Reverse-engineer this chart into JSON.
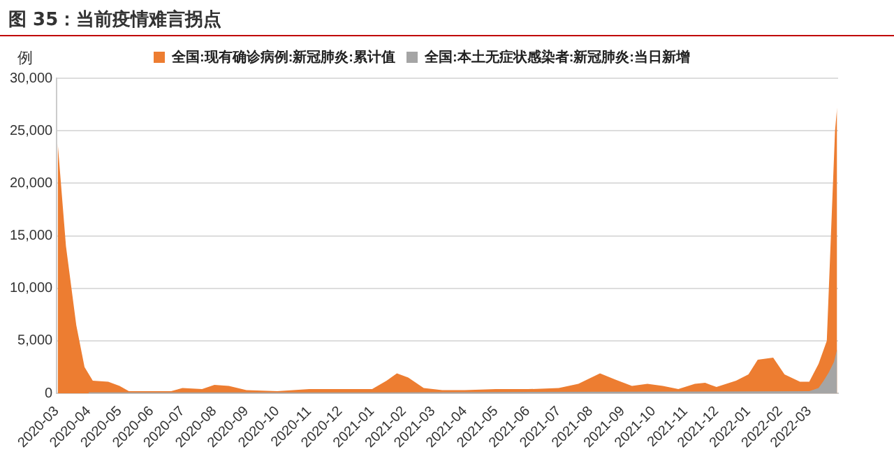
{
  "chart_data": {
    "type": "area",
    "title": "图 35：当前疫情难言拐点",
    "ylabel": "例",
    "xlim": [
      "2020-03-01",
      "2022-03-29"
    ],
    "xticks": [
      "2020-03",
      "2020-04",
      "2020-05",
      "2020-06",
      "2020-07",
      "2020-08",
      "2020-09",
      "2020-10",
      "2020-11",
      "2020-12",
      "2021-01",
      "2021-02",
      "2021-03",
      "2021-04",
      "2021-05",
      "2021-06",
      "2021-07",
      "2021-08",
      "2021-09",
      "2021-10",
      "2021-11",
      "2021-12",
      "2022-01",
      "2022-02",
      "2022-03"
    ],
    "ylim": [
      0,
      30000
    ],
    "yticks": [
      {
        "value": 0,
        "label": "0"
      },
      {
        "value": 5000,
        "label": "5,000"
      },
      {
        "value": 10000,
        "label": "10,000"
      },
      {
        "value": 15000,
        "label": "15,000"
      },
      {
        "value": 20000,
        "label": "20,000"
      },
      {
        "value": 25000,
        "label": "25,000"
      },
      {
        "value": 30000,
        "label": "30,000"
      }
    ],
    "grid": "y",
    "legend": "top",
    "marker": "none",
    "series": [
      {
        "name": "全国:现有确诊病例:新冠肺炎:累计值",
        "color": "#ed7d31",
        "x": [
          "2020-03-02",
          "2020-03-10",
          "2020-03-20",
          "2020-03-28",
          "2020-04-05",
          "2020-04-20",
          "2020-05-01",
          "2020-05-10",
          "2020-06-01",
          "2020-06-20",
          "2020-07-01",
          "2020-07-20",
          "2020-08-01",
          "2020-08-15",
          "2020-09-01",
          "2020-10-01",
          "2020-11-01",
          "2020-12-01",
          "2021-01-01",
          "2021-01-15",
          "2021-01-25",
          "2021-02-05",
          "2021-02-20",
          "2021-03-10",
          "2021-04-01",
          "2021-05-01",
          "2021-06-01",
          "2021-07-01",
          "2021-07-20",
          "2021-08-10",
          "2021-08-25",
          "2021-09-10",
          "2021-09-25",
          "2021-10-10",
          "2021-10-25",
          "2021-11-10",
          "2021-11-20",
          "2021-12-01",
          "2021-12-20",
          "2022-01-01",
          "2022-01-10",
          "2022-01-25",
          "2022-02-05",
          "2022-02-20",
          "2022-03-01",
          "2022-03-10",
          "2022-03-18",
          "2022-03-22",
          "2022-03-26",
          "2022-03-28"
        ],
        "values": [
          23800,
          14000,
          6500,
          2500,
          1200,
          1100,
          700,
          200,
          200,
          200,
          500,
          400,
          800,
          700,
          300,
          200,
          400,
          400,
          400,
          1200,
          1900,
          1500,
          500,
          300,
          300,
          400,
          400,
          500,
          900,
          1900,
          1300,
          700,
          900,
          700,
          400,
          900,
          1000,
          600,
          1200,
          1800,
          3200,
          3400,
          1800,
          1100,
          1100,
          2800,
          5000,
          15000,
          25000,
          27200
        ]
      },
      {
        "name": "全国:本土无症状感染者:新冠肺炎:当日新增",
        "color": "#a5a5a5",
        "x": [
          "2020-04-01",
          "2021-01-15",
          "2022-03-01",
          "2022-03-10",
          "2022-03-15",
          "2022-03-20",
          "2022-03-25",
          "2022-03-28"
        ],
        "values": [
          100,
          100,
          200,
          500,
          1200,
          2000,
          3000,
          4200
        ]
      }
    ]
  }
}
